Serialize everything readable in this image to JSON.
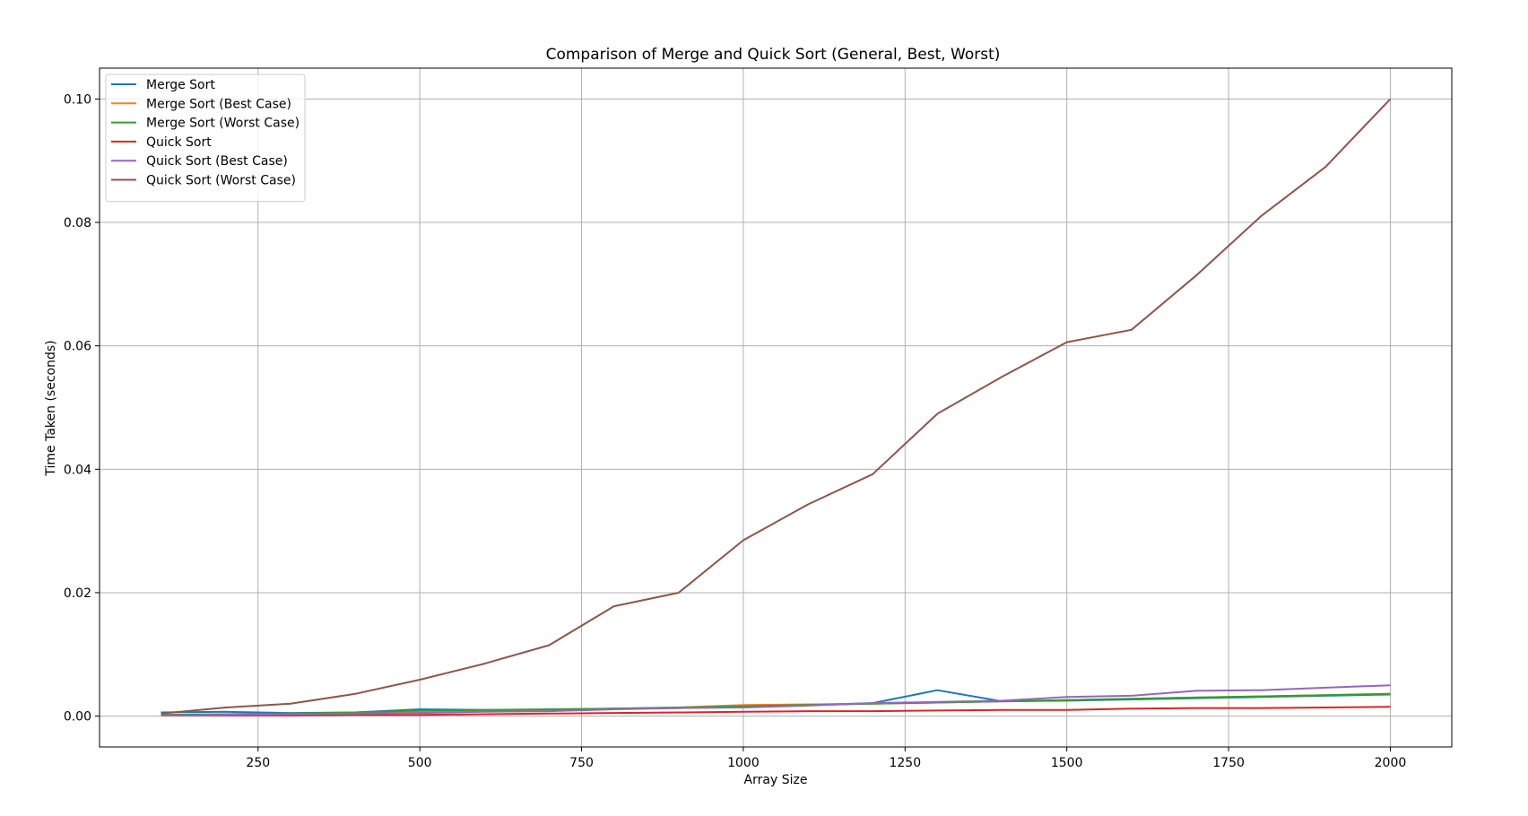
{
  "chart_data": {
    "type": "line",
    "title": "Comparison of Merge and Quick Sort (General, Best, Worst)",
    "xlabel": "Array Size",
    "ylabel": "Time Taken (seconds)",
    "xlim": [
      5,
      2095
    ],
    "ylim": [
      -0.005,
      0.105
    ],
    "xticks": [
      250,
      500,
      750,
      1000,
      1250,
      1500,
      1750,
      2000
    ],
    "yticks": [
      0.0,
      0.02,
      0.04,
      0.06,
      0.08,
      0.1
    ],
    "xtick_labels": [
      "250",
      "500",
      "750",
      "1000",
      "1250",
      "1500",
      "1750",
      "2000"
    ],
    "ytick_labels": [
      "0.00",
      "0.02",
      "0.04",
      "0.06",
      "0.08",
      "0.10"
    ],
    "grid": true,
    "legend_position": "top-left",
    "x": [
      100,
      200,
      300,
      400,
      500,
      600,
      700,
      800,
      900,
      1000,
      1100,
      1200,
      1300,
      1400,
      1500,
      1600,
      1700,
      1800,
      1900,
      2000
    ],
    "series": [
      {
        "name": "Merge Sort",
        "color": "#1f77b4",
        "values": [
          0.0006,
          0.0007,
          0.0005,
          0.0006,
          0.0011,
          0.001,
          0.001,
          0.0012,
          0.0013,
          0.0015,
          0.0018,
          0.0021,
          0.0042,
          0.0024,
          0.0025,
          0.0027,
          0.0029,
          0.0031,
          0.0033,
          0.0035
        ]
      },
      {
        "name": "Merge Sort (Best Case)",
        "color": "#ff7f0e",
        "values": [
          0.0002,
          0.0003,
          0.0004,
          0.0005,
          0.0007,
          0.0008,
          0.0009,
          0.0012,
          0.0014,
          0.0018,
          0.0019,
          0.002,
          0.0022,
          0.0024,
          0.0026,
          0.0028,
          0.003,
          0.0032,
          0.0034,
          0.0036
        ]
      },
      {
        "name": "Merge Sort (Worst Case)",
        "color": "#2ca02c",
        "values": [
          0.0002,
          0.0003,
          0.0004,
          0.0006,
          0.0009,
          0.001,
          0.0011,
          0.0012,
          0.0014,
          0.0016,
          0.0018,
          0.002,
          0.0022,
          0.0024,
          0.0026,
          0.0028,
          0.003,
          0.0032,
          0.0034,
          0.0036
        ]
      },
      {
        "name": "Quick Sort",
        "color": "#d62728",
        "values": [
          0.0001,
          0.0001,
          0.0001,
          0.0002,
          0.0002,
          0.0003,
          0.0004,
          0.0005,
          0.0006,
          0.0007,
          0.0008,
          0.0008,
          0.0009,
          0.001,
          0.001,
          0.0012,
          0.0013,
          0.0013,
          0.0014,
          0.0015
        ]
      },
      {
        "name": "Quick Sort (Best Case)",
        "color": "#9467bd",
        "values": [
          0.0001,
          0.0002,
          0.0003,
          0.0004,
          0.0005,
          0.0007,
          0.0008,
          0.0011,
          0.0013,
          0.0014,
          0.0017,
          0.0021,
          0.0023,
          0.0025,
          0.0031,
          0.0033,
          0.0041,
          0.0042,
          0.0046,
          0.005
        ]
      },
      {
        "name": "Quick Sort (Worst Case)",
        "color": "#8c564b",
        "values": [
          0.0004,
          0.0014,
          0.002,
          0.0036,
          0.0059,
          0.0085,
          0.0115,
          0.0178,
          0.02,
          0.0285,
          0.0343,
          0.0392,
          0.049,
          0.055,
          0.0606,
          0.0626,
          0.0714,
          0.081,
          0.089,
          0.1
        ]
      }
    ]
  }
}
